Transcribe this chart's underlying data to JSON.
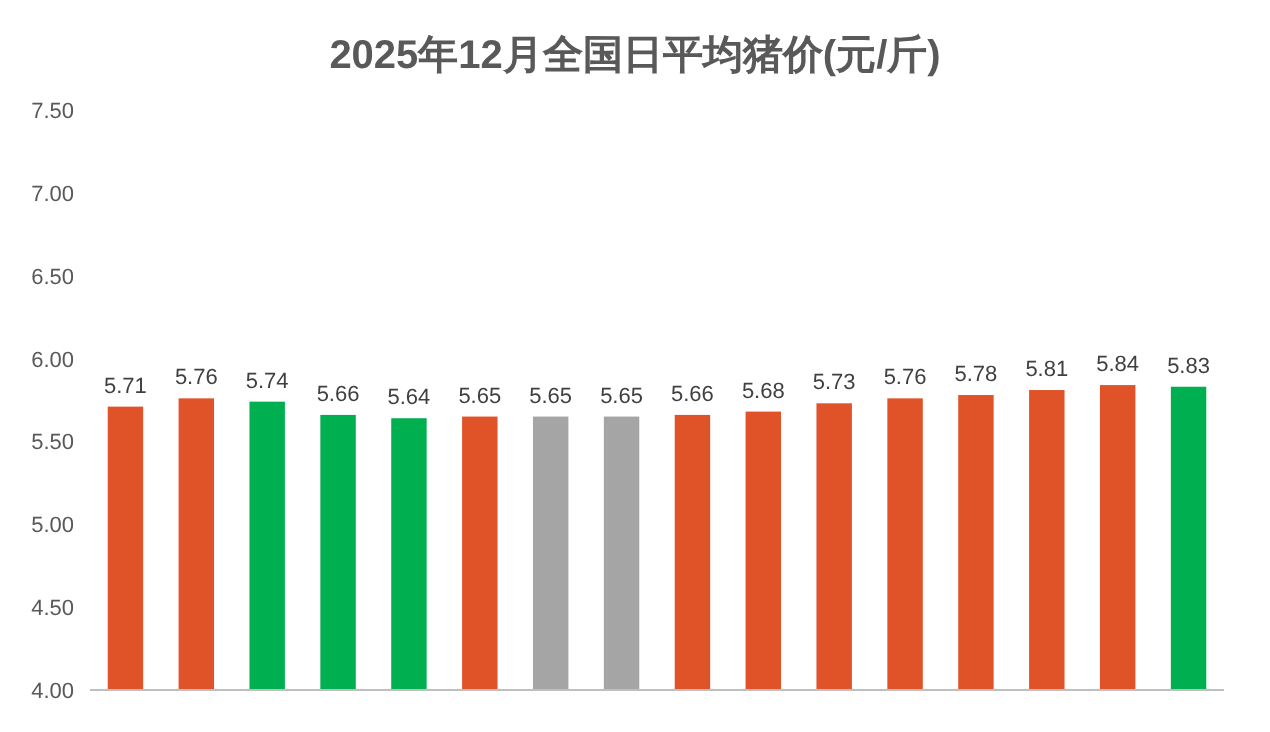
{
  "chart_data": {
    "type": "bar",
    "title": "2025年12月全国日平均猪价(元/斤)",
    "categories": [
      null,
      null,
      null,
      null,
      null,
      null,
      null,
      null,
      null,
      null,
      null,
      null,
      null,
      null,
      null,
      null
    ],
    "values": [
      5.71,
      5.76,
      5.74,
      5.66,
      5.64,
      5.65,
      5.65,
      5.65,
      5.66,
      5.68,
      5.73,
      5.76,
      5.78,
      5.81,
      5.84,
      5.83
    ],
    "colors": [
      "#e05227",
      "#e05227",
      "#00b050",
      "#00b050",
      "#00b050",
      "#e05227",
      "#a5a5a5",
      "#a5a5a5",
      "#e05227",
      "#e05227",
      "#e05227",
      "#e05227",
      "#e05227",
      "#e05227",
      "#e05227",
      "#00b050"
    ],
    "ylim": [
      4,
      7.5
    ],
    "yticks": [
      {
        "value": 4,
        "label": "4.00"
      },
      {
        "value": 4.5,
        "label": "4.50"
      },
      {
        "value": 5,
        "label": "5.00"
      },
      {
        "value": 5.5,
        "label": "5.50"
      },
      {
        "value": 6,
        "label": "6.00"
      },
      {
        "value": 6.5,
        "label": "6.50"
      },
      {
        "value": 7,
        "label": "7.00"
      },
      {
        "value": 7.5,
        "label": "7.50"
      }
    ],
    "data_labels": true,
    "grid": false
  }
}
